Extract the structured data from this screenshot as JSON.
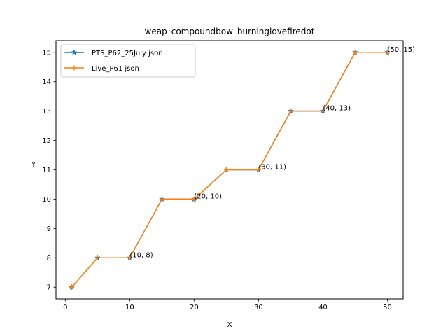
{
  "chart_data": {
    "type": "line",
    "title": "weap_compoundbow_burninglovefiredot",
    "xlabel": "X",
    "ylabel": "Y",
    "xlim": [
      -1.45,
      52.45
    ],
    "ylim": [
      6.6,
      15.4
    ],
    "xticks": [
      0,
      10,
      20,
      30,
      40,
      50
    ],
    "yticks": [
      7,
      8,
      9,
      10,
      11,
      12,
      13,
      14,
      15
    ],
    "grid": false,
    "legend_position": "upper left",
    "x": [
      1,
      5,
      10,
      15,
      20,
      25,
      30,
      35,
      40,
      45,
      50
    ],
    "series": [
      {
        "name": "PTS_P62_25July json",
        "color": "#1f77b4",
        "marker": "star",
        "values": [
          7,
          8,
          8,
          10,
          10,
          11,
          11,
          13,
          13,
          15,
          15
        ]
      },
      {
        "name": "Live_P61 json",
        "color": "#ff7f0e",
        "marker": "plus",
        "values": [
          7,
          8,
          8,
          10,
          10,
          11,
          11,
          13,
          13,
          15,
          15
        ]
      }
    ],
    "annotations": [
      {
        "text": "(10, 8)",
        "x": 10,
        "y": 8
      },
      {
        "text": "(20, 10)",
        "x": 20,
        "y": 10
      },
      {
        "text": "(30, 11)",
        "x": 30,
        "y": 11
      },
      {
        "text": "(40, 13)",
        "x": 40,
        "y": 13
      },
      {
        "text": "(50, 15)",
        "x": 50,
        "y": 15
      }
    ]
  }
}
